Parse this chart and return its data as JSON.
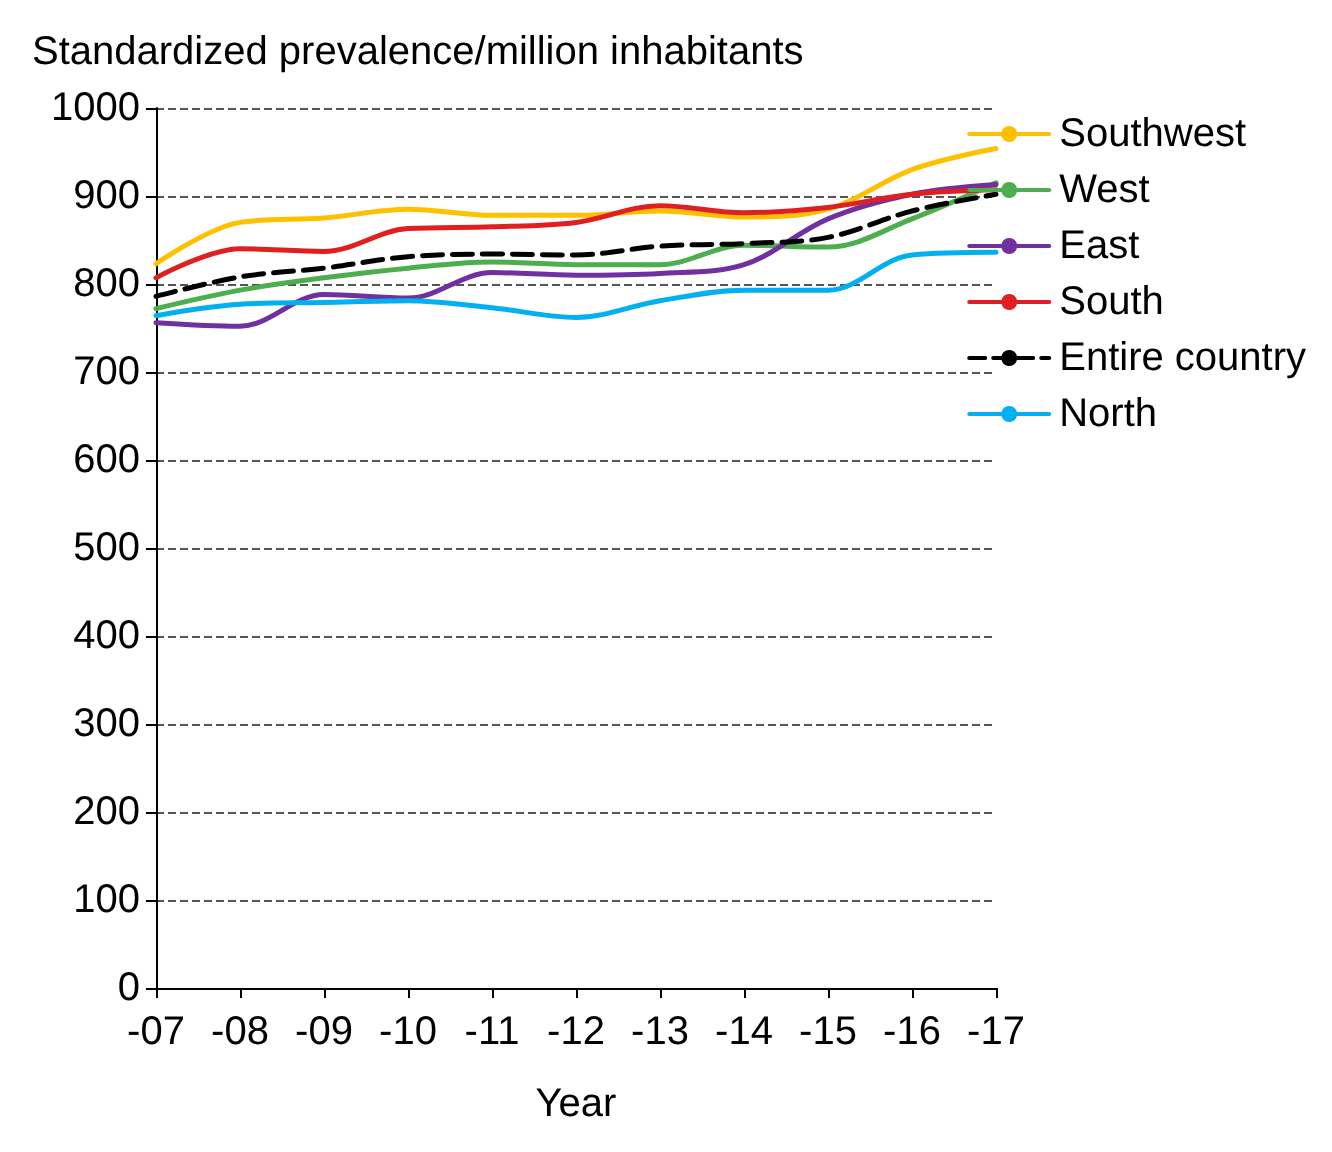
{
  "chart_data": {
    "type": "line",
    "ylabel": "Standardized prevalence/million inhabitants",
    "xlabel": "Year",
    "categories": [
      "-07",
      "-08",
      "-09",
      "-10",
      "-11",
      "-12",
      "-13",
      "-14",
      "-15",
      "-16",
      "-17"
    ],
    "series": [
      {
        "name": "Southwest",
        "color": "#ffc000",
        "values": [
          823,
          870,
          875,
          885,
          878,
          878,
          883,
          876,
          885,
          930,
          954
        ]
      },
      {
        "name": "West",
        "color": "#4cae4c",
        "values": [
          772,
          793,
          807,
          818,
          825,
          822,
          822,
          844,
          842,
          874,
          915
        ]
      },
      {
        "name": "East",
        "color": "#7030a0",
        "values": [
          756,
          752,
          788,
          784,
          813,
          810,
          812,
          822,
          874,
          902,
          913
        ]
      },
      {
        "name": "South",
        "color": "#e02020",
        "values": [
          807,
          840,
          837,
          863,
          865,
          870,
          889,
          881,
          887,
          902,
          907
        ]
      },
      {
        "name": "Entire country",
        "color": "#000000",
        "line_style": "dashed",
        "values": [
          786,
          808,
          818,
          831,
          834,
          833,
          843,
          846,
          853,
          883,
          902
        ]
      },
      {
        "name": "North",
        "color": "#00b0f0",
        "values": [
          764,
          777,
          779,
          781,
          773,
          762,
          781,
          793,
          793,
          833,
          836
        ]
      }
    ],
    "ylim": [
      0,
      1000
    ],
    "yticks": [
      0,
      100,
      200,
      300,
      400,
      500,
      600,
      700,
      800,
      900,
      1000
    ],
    "grid": "y",
    "legend": "right",
    "marker": "none"
  }
}
